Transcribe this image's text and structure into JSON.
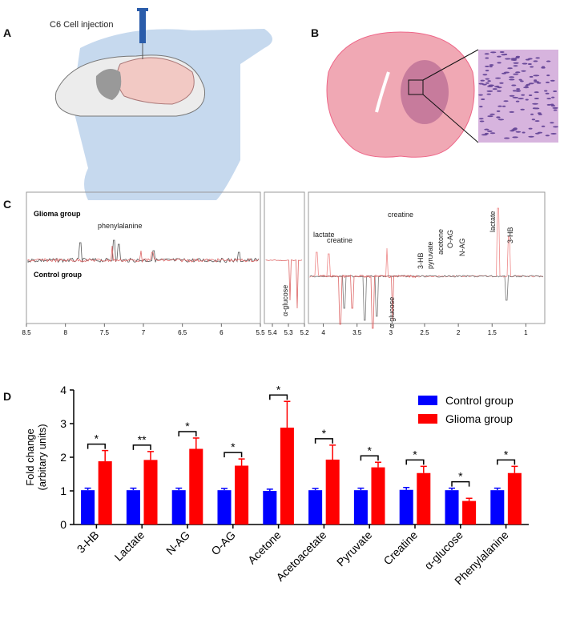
{
  "figure": {
    "panel_labels": [
      "A",
      "B",
      "C",
      "D"
    ],
    "panel_a": {
      "caption": "C6 Cell injection"
    },
    "spectrum": {
      "groups": [
        "Glioma group",
        "Control group"
      ],
      "annotations": [
        "phenylalanine",
        "lactate",
        "creatine",
        "creatine",
        "3-HB",
        "pyruvate",
        "acetone",
        "O-AG",
        "N-AG",
        "lactate",
        "3-HB",
        "α-glucose",
        "α-glucose"
      ],
      "segments": [
        {
          "xlim": [
            8.5,
            5.5
          ],
          "xticks": [
            8.5,
            8,
            7.5,
            7,
            6.5,
            6,
            5.5
          ]
        },
        {
          "xlim": [
            5.45,
            5.2
          ],
          "xticks": [
            5.4,
            5.3,
            5.2
          ]
        },
        {
          "xlim": [
            4.22,
            0.72
          ],
          "xticks": [
            4,
            3.5,
            3,
            2.5,
            2,
            1.5,
            1
          ]
        }
      ]
    }
  },
  "chart_data": {
    "type": "bar",
    "ylabel": [
      "Fold change",
      "(arbitary units)"
    ],
    "categories": [
      "3-HB",
      "Lactate",
      "N-AG",
      "O-AG",
      "Acetone",
      "Acetoacetate",
      "Pyruvate",
      "Creatine",
      "α-glucose",
      "Phenylalanine"
    ],
    "series": [
      {
        "name": "Control group",
        "color": "#0000ff",
        "values": [
          1.02,
          1.02,
          1.02,
          1.02,
          1.0,
          1.02,
          1.02,
          1.03,
          1.02,
          1.02
        ],
        "errors": [
          0.06,
          0.06,
          0.06,
          0.05,
          0.05,
          0.05,
          0.06,
          0.07,
          0.06,
          0.06
        ]
      },
      {
        "name": "Glioma group",
        "color": "#ff0000",
        "values": [
          1.88,
          1.92,
          2.25,
          1.75,
          2.88,
          1.93,
          1.7,
          1.53,
          0.7,
          1.53
        ],
        "errors": [
          0.32,
          0.25,
          0.32,
          0.2,
          0.78,
          0.43,
          0.15,
          0.2,
          0.08,
          0.2
        ]
      }
    ],
    "significance": [
      "*",
      "**",
      "*",
      "*",
      "*",
      "*",
      "*",
      "*",
      "*",
      "*"
    ],
    "ylim": [
      0,
      4
    ],
    "yticks": [
      0,
      1,
      2,
      3,
      4
    ],
    "legend": "upper right"
  }
}
